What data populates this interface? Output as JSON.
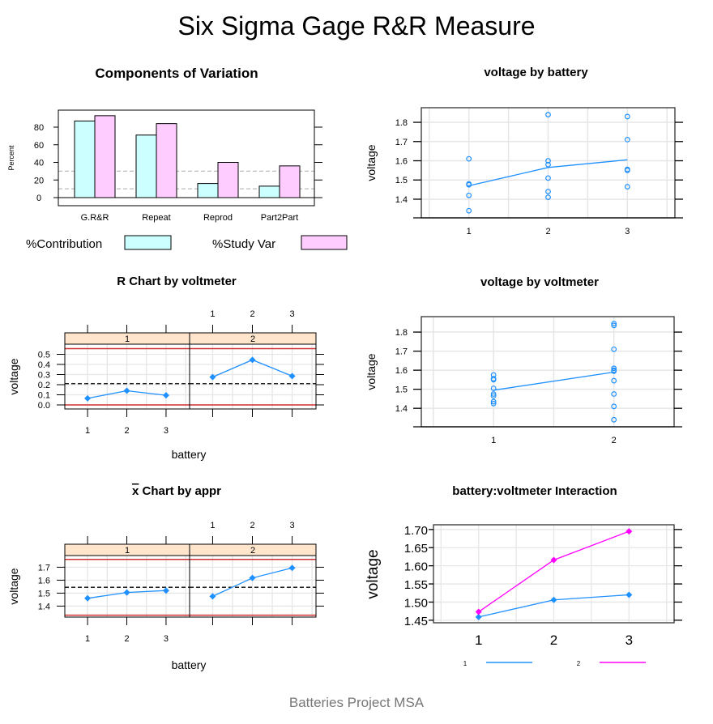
{
  "title": "Six Sigma Gage R&R Measure",
  "footer": "Batteries Project MSA",
  "colors": {
    "contribution": "#ccffff",
    "study_var": "#ffccff",
    "points": "#1e90ff",
    "series2": "#ff00ff",
    "limits": "#d03030",
    "strip": "#ffe5cc",
    "grid": "#e6e6e6"
  },
  "chart_data": [
    {
      "type": "bar",
      "title": "Components of Variation",
      "ylabel": "Percent",
      "categories": [
        "G.R&R",
        "Repeat",
        "Reprod",
        "Part2Part"
      ],
      "series": [
        {
          "name": "%Contribution",
          "values": [
            87,
            71,
            16,
            13
          ]
        },
        {
          "name": "%Study Var",
          "values": [
            93,
            84,
            40,
            36
          ]
        }
      ],
      "reference_lines": [
        10,
        30
      ],
      "yticks": [
        0,
        20,
        40,
        60,
        80
      ],
      "ylim": [
        -9,
        100
      ],
      "legend": "bottom"
    },
    {
      "type": "scatter",
      "title": "voltage by battery",
      "ylabel": "voltage",
      "xticks": [
        "1",
        "2",
        "3"
      ],
      "yticks": [
        1.4,
        1.5,
        1.6,
        1.7,
        1.8
      ],
      "ylim": [
        1.303,
        1.876
      ],
      "xlim": [
        0.4,
        3.6
      ],
      "points": [
        {
          "x": 1,
          "y": 1.61
        },
        {
          "x": 1,
          "y": 1.48
        },
        {
          "x": 1,
          "y": 1.475
        },
        {
          "x": 1,
          "y": 1.42
        },
        {
          "x": 1,
          "y": 1.34
        },
        {
          "x": 2,
          "y": 1.84
        },
        {
          "x": 2,
          "y": 1.6
        },
        {
          "x": 2,
          "y": 1.58
        },
        {
          "x": 2,
          "y": 1.51
        },
        {
          "x": 2,
          "y": 1.44
        },
        {
          "x": 2,
          "y": 1.41
        },
        {
          "x": 3,
          "y": 1.83
        },
        {
          "x": 3,
          "y": 1.71
        },
        {
          "x": 3,
          "y": 1.555
        },
        {
          "x": 3,
          "y": 1.55
        },
        {
          "x": 3,
          "y": 1.465
        }
      ],
      "mean_line": [
        1.47,
        1.565,
        1.605
      ],
      "grid": true
    },
    {
      "type": "line",
      "title": "R Chart by voltmeter",
      "xlabel": "battery",
      "ylabel": "voltage",
      "panels": [
        {
          "strip": "1",
          "values": [
            0.065,
            0.14,
            0.095
          ]
        },
        {
          "strip": "2",
          "values": [
            0.275,
            0.445,
            0.285
          ]
        }
      ],
      "xticks": [
        "1",
        "2",
        "3"
      ],
      "yticks": [
        0.0,
        0.1,
        0.2,
        0.3,
        0.4,
        0.5
      ],
      "ylim": [
        -0.04,
        0.6
      ],
      "center_line": 0.21,
      "control_limits": [
        0.0,
        0.556
      ],
      "grid": true
    },
    {
      "type": "scatter",
      "title": "voltage by voltmeter",
      "ylabel": "voltage",
      "xticks": [
        "1",
        "2"
      ],
      "yticks": [
        1.4,
        1.5,
        1.6,
        1.7,
        1.8
      ],
      "ylim": [
        1.303,
        1.881
      ],
      "xlim": [
        0.4,
        2.5
      ],
      "points": [
        {
          "x": 1,
          "y": 1.575
        },
        {
          "x": 1,
          "y": 1.555
        },
        {
          "x": 1,
          "y": 1.55
        },
        {
          "x": 1,
          "y": 1.505
        },
        {
          "x": 1,
          "y": 1.475
        },
        {
          "x": 1,
          "y": 1.465
        },
        {
          "x": 1,
          "y": 1.435
        },
        {
          "x": 1,
          "y": 1.425
        },
        {
          "x": 2,
          "y": 1.845
        },
        {
          "x": 2,
          "y": 1.835
        },
        {
          "x": 2,
          "y": 1.71
        },
        {
          "x": 2,
          "y": 1.61
        },
        {
          "x": 2,
          "y": 1.6
        },
        {
          "x": 2,
          "y": 1.595
        },
        {
          "x": 2,
          "y": 1.545
        },
        {
          "x": 2,
          "y": 1.475
        },
        {
          "x": 2,
          "y": 1.41
        },
        {
          "x": 2,
          "y": 1.34
        }
      ],
      "mean_line": [
        1.495,
        1.59
      ],
      "grid": true
    },
    {
      "type": "line",
      "title_bar": "x",
      "title": " Chart by appr",
      "xlabel": "battery",
      "ylabel": "voltage",
      "panels": [
        {
          "strip": "1",
          "values": [
            1.46,
            1.505,
            1.52
          ]
        },
        {
          "strip": "2",
          "values": [
            1.475,
            1.617,
            1.695
          ]
        }
      ],
      "xticks": [
        "1",
        "2",
        "3"
      ],
      "yticks": [
        1.4,
        1.5,
        1.6,
        1.7
      ],
      "ylim": [
        1.315,
        1.79
      ],
      "center_line": 1.545,
      "control_limits": [
        1.33,
        1.76
      ],
      "grid": true
    },
    {
      "type": "line",
      "title": "battery:voltmeter Interaction",
      "ylabel": "voltage",
      "xticks": [
        "1",
        "2",
        "3"
      ],
      "yticks": [
        1.45,
        1.5,
        1.55,
        1.6,
        1.65,
        1.7
      ],
      "ylim": [
        1.443,
        1.713
      ],
      "xlim": [
        0.4,
        3.6
      ],
      "series": [
        {
          "name": "1",
          "values": [
            1.459,
            1.506,
            1.52
          ]
        },
        {
          "name": "2",
          "values": [
            1.473,
            1.616,
            1.695
          ]
        }
      ],
      "legend": "bottom",
      "grid": true
    }
  ]
}
